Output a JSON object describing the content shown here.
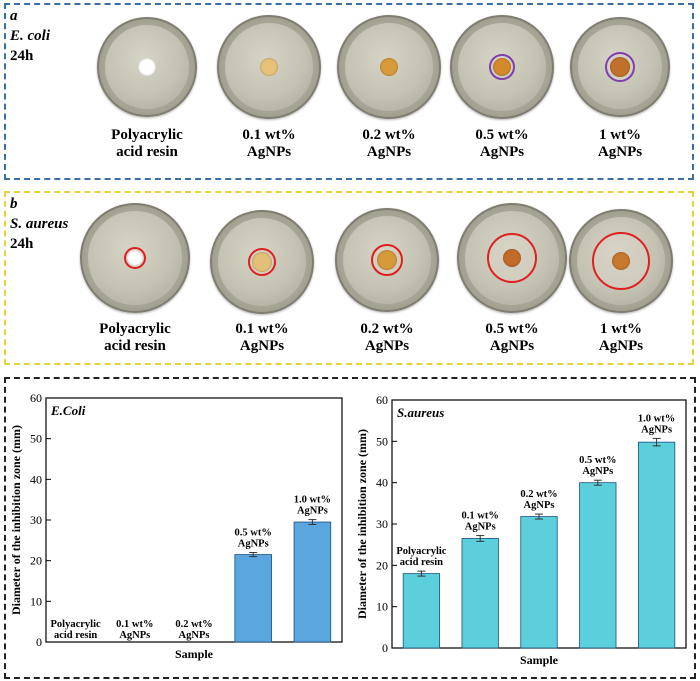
{
  "panel_a": {
    "tag": "a",
    "organism": "E. coli",
    "time": "24h",
    "dish_labels": [
      [
        "Polyacrylic",
        "acid resin"
      ],
      [
        "0.1 wt%",
        "AgNPs"
      ],
      [
        "0.2 wt%",
        "AgNPs"
      ],
      [
        "0.5 wt%",
        "AgNPs"
      ],
      [
        "1 wt%",
        "AgNPs"
      ]
    ],
    "ring_color": "#7d3fb0"
  },
  "panel_b": {
    "tag": "b",
    "organism": "S. aureus",
    "time": "24h",
    "dish_labels": [
      [
        "Polyacrylic",
        "acid resin"
      ],
      [
        "0.1 wt%",
        "AgNPs"
      ],
      [
        "0.2 wt%",
        "AgNPs"
      ],
      [
        "0.5 wt%",
        "AgNPs"
      ],
      [
        "1 wt%",
        "AgNPs"
      ]
    ],
    "ring_color": "#e02020"
  },
  "colors": {
    "panel_a_border": "#3a6ea5",
    "panel_b_border": "#e8d23a",
    "panel_cd_border": "#222222",
    "bar_c": "#5aa6df",
    "bar_d": "#5ccfdc"
  },
  "chart_data": [
    {
      "type": "bar",
      "panel": "c",
      "title": "E.Coli",
      "xlabel": "Sample",
      "ylabel": "Diameter of the inhibition zone (mm)",
      "ylim": [
        0,
        60
      ],
      "yticks": [
        "0",
        "10",
        "20",
        "30",
        "40",
        "50",
        "60"
      ],
      "categories": [
        [
          "Polyacrylic",
          "acid resin"
        ],
        [
          "0.1 wt%",
          "AgNPs"
        ],
        [
          "0.2 wt%",
          "AgNPs"
        ],
        [
          "0.5 wt%",
          "AgNPs"
        ],
        [
          "1.0 wt%",
          "AgNPs"
        ]
      ],
      "values": [
        0,
        0,
        0,
        21.5,
        29.5
      ],
      "errors": [
        0,
        0,
        0,
        0.5,
        0.6
      ]
    },
    {
      "type": "bar",
      "panel": "d",
      "title": "S.aureus",
      "xlabel": "Sample",
      "ylabel": "Diameter of the inhibition zone (mm)",
      "ylim": [
        0,
        60
      ],
      "yticks": [
        "0",
        "10",
        "20",
        "30",
        "40",
        "50",
        "60"
      ],
      "categories": [
        [
          "Polyacrylic",
          "acid resin"
        ],
        [
          "0.1 wt%",
          "AgNPs"
        ],
        [
          "0.2 wt%",
          "AgNPs"
        ],
        [
          "0.5 wt%",
          "AgNPs"
        ],
        [
          "1.0 wt%",
          "AgNPs"
        ]
      ],
      "values": [
        18,
        26.5,
        31.8,
        40,
        49.8
      ],
      "errors": [
        0.6,
        0.7,
        0.6,
        0.6,
        0.9
      ]
    }
  ]
}
